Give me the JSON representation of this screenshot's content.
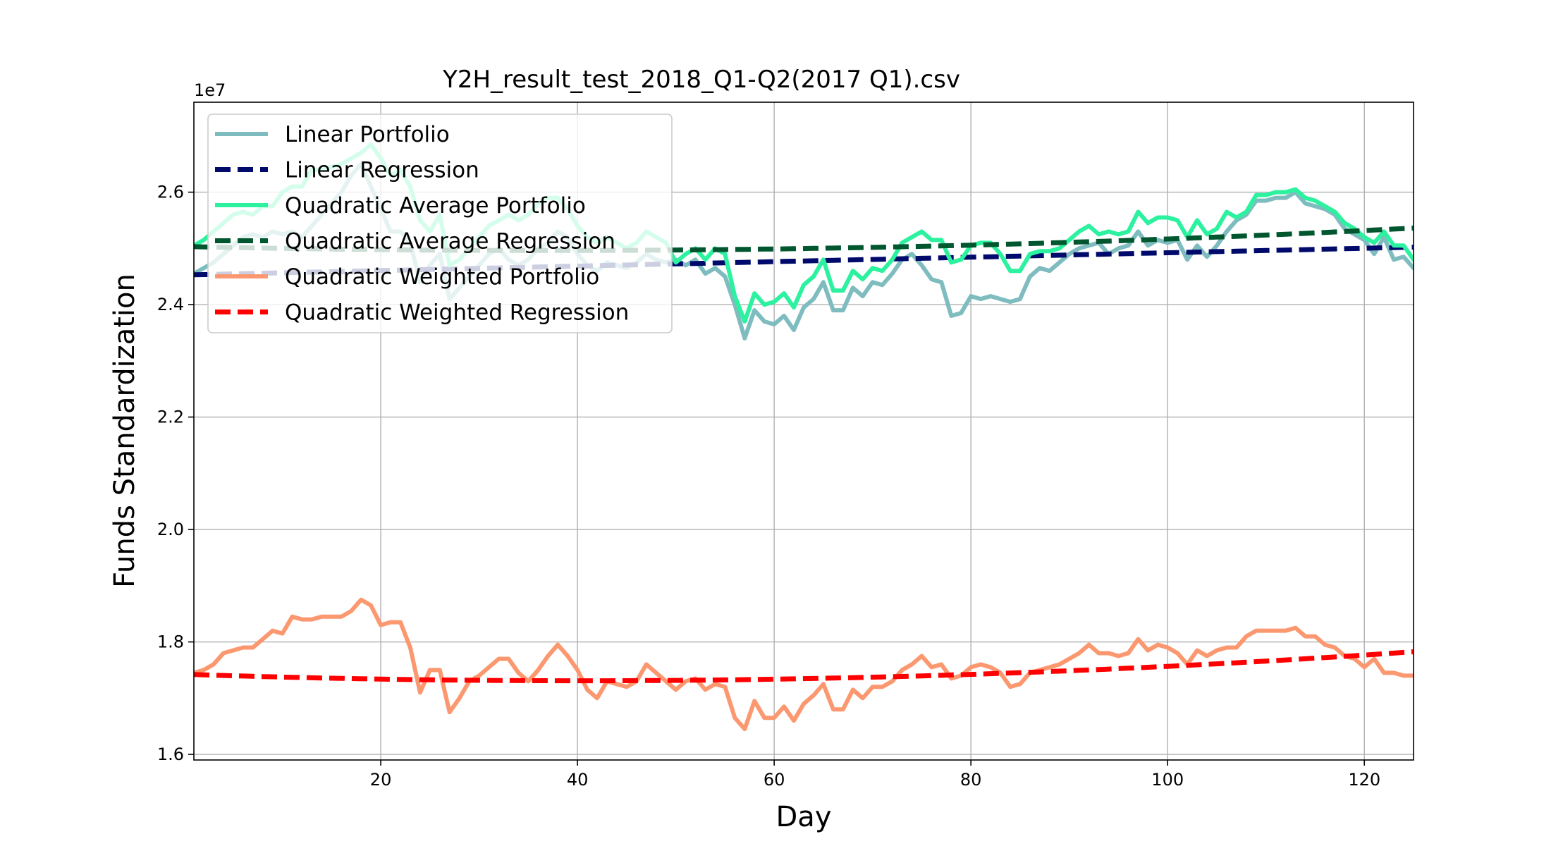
{
  "chart_data": {
    "type": "line",
    "title": "Y2H_result_test_2018_Q1-Q2(2017 Q1).csv",
    "xlabel": "Day",
    "ylabel": "Funds Standardization",
    "y_offset_label": "1e7",
    "xlim": [
      1,
      125
    ],
    "ylim": [
      1.59,
      2.76
    ],
    "xticks": [
      20,
      40,
      60,
      80,
      100,
      120
    ],
    "yticks": [
      1.6,
      1.8,
      2.0,
      2.2,
      2.4,
      2.6
    ],
    "ytick_labels": [
      "1.6",
      "1.8",
      "2.0",
      "2.2",
      "2.4",
      "2.6"
    ],
    "grid": true,
    "legend_position": "upper-left",
    "series": [
      {
        "name": "Linear Portfolio",
        "color": "#7fbcbf",
        "style": "solid",
        "values": [
          2.455,
          2.465,
          2.475,
          2.49,
          2.505,
          2.52,
          2.525,
          2.52,
          2.53,
          2.525,
          2.53,
          2.52,
          2.54,
          2.56,
          2.58,
          2.6,
          2.63,
          2.65,
          2.61,
          2.57,
          2.53,
          2.53,
          2.51,
          2.44,
          2.47,
          2.49,
          2.41,
          2.43,
          2.45,
          2.47,
          2.49,
          2.5,
          2.48,
          2.47,
          2.48,
          2.5,
          2.51,
          2.53,
          2.52,
          2.49,
          2.47,
          2.46,
          2.475,
          2.47,
          2.465,
          2.475,
          2.49,
          2.48,
          2.475,
          2.48,
          2.47,
          2.48,
          2.455,
          2.465,
          2.45,
          2.4,
          2.34,
          2.39,
          2.37,
          2.365,
          2.38,
          2.355,
          2.395,
          2.41,
          2.44,
          2.39,
          2.39,
          2.43,
          2.415,
          2.44,
          2.435,
          2.455,
          2.48,
          2.49,
          2.47,
          2.445,
          2.44,
          2.38,
          2.385,
          2.415,
          2.41,
          2.415,
          2.41,
          2.405,
          2.41,
          2.45,
          2.465,
          2.46,
          2.475,
          2.49,
          2.5,
          2.505,
          2.51,
          2.49,
          2.5,
          2.505,
          2.53,
          2.505,
          2.515,
          2.51,
          2.515,
          2.48,
          2.505,
          2.485,
          2.505,
          2.53,
          2.55,
          2.56,
          2.585,
          2.585,
          2.59,
          2.59,
          2.6,
          2.58,
          2.575,
          2.57,
          2.56,
          2.535,
          2.525,
          2.515,
          2.49,
          2.52,
          2.48,
          2.485,
          2.465,
          2.48,
          2.485
        ]
      },
      {
        "name": "Linear Regression",
        "color": "#000a6b",
        "style": "dashed",
        "values_from": [
          2.453,
          2.503
        ]
      },
      {
        "name": "Quadratic Average Portfolio",
        "color": "#2cf2a0",
        "style": "solid",
        "values": [
          2.505,
          2.515,
          2.53,
          2.545,
          2.56,
          2.565,
          2.56,
          2.575,
          2.575,
          2.6,
          2.61,
          2.61,
          2.64,
          2.64,
          2.645,
          2.65,
          2.66,
          2.67,
          2.685,
          2.66,
          2.63,
          2.64,
          2.61,
          2.55,
          2.53,
          2.56,
          2.47,
          2.48,
          2.5,
          2.52,
          2.54,
          2.55,
          2.56,
          2.55,
          2.56,
          2.58,
          2.59,
          2.59,
          2.57,
          2.54,
          2.52,
          2.51,
          2.52,
          2.51,
          2.5,
          2.51,
          2.53,
          2.52,
          2.51,
          2.475,
          2.49,
          2.5,
          2.48,
          2.5,
          2.49,
          2.415,
          2.37,
          2.42,
          2.4,
          2.405,
          2.42,
          2.395,
          2.435,
          2.45,
          2.48,
          2.425,
          2.425,
          2.46,
          2.445,
          2.465,
          2.46,
          2.48,
          2.51,
          2.52,
          2.53,
          2.515,
          2.515,
          2.475,
          2.48,
          2.505,
          2.51,
          2.51,
          2.49,
          2.46,
          2.46,
          2.49,
          2.495,
          2.495,
          2.5,
          2.515,
          2.53,
          2.54,
          2.525,
          2.53,
          2.525,
          2.53,
          2.565,
          2.545,
          2.555,
          2.555,
          2.55,
          2.52,
          2.55,
          2.525,
          2.535,
          2.565,
          2.555,
          2.565,
          2.595,
          2.595,
          2.6,
          2.6,
          2.605,
          2.59,
          2.585,
          2.575,
          2.565,
          2.545,
          2.535,
          2.52,
          2.51,
          2.53,
          2.505,
          2.505,
          2.48,
          2.49,
          2.49
        ]
      },
      {
        "name": "Quadratic Average Regression",
        "color": "#00562e",
        "style": "dashed",
        "values_from": [
          2.503,
          2.5,
          2.538
        ]
      },
      {
        "name": "Quadratic Weighted Portfolio",
        "color": "#fb9870",
        "style": "solid",
        "values": [
          1.745,
          1.75,
          1.76,
          1.78,
          1.785,
          1.79,
          1.79,
          1.805,
          1.82,
          1.815,
          1.845,
          1.84,
          1.84,
          1.845,
          1.845,
          1.845,
          1.855,
          1.875,
          1.865,
          1.83,
          1.835,
          1.835,
          1.79,
          1.71,
          1.75,
          1.75,
          1.675,
          1.7,
          1.73,
          1.74,
          1.755,
          1.77,
          1.77,
          1.745,
          1.73,
          1.75,
          1.775,
          1.795,
          1.775,
          1.75,
          1.715,
          1.7,
          1.73,
          1.725,
          1.72,
          1.73,
          1.76,
          1.745,
          1.73,
          1.715,
          1.73,
          1.735,
          1.715,
          1.725,
          1.72,
          1.665,
          1.645,
          1.695,
          1.665,
          1.665,
          1.685,
          1.66,
          1.69,
          1.705,
          1.725,
          1.68,
          1.68,
          1.715,
          1.7,
          1.72,
          1.72,
          1.73,
          1.75,
          1.76,
          1.775,
          1.755,
          1.76,
          1.735,
          1.74,
          1.755,
          1.76,
          1.755,
          1.745,
          1.72,
          1.725,
          1.745,
          1.75,
          1.755,
          1.76,
          1.77,
          1.78,
          1.795,
          1.78,
          1.78,
          1.775,
          1.78,
          1.805,
          1.785,
          1.795,
          1.79,
          1.78,
          1.76,
          1.785,
          1.775,
          1.785,
          1.79,
          1.79,
          1.81,
          1.82,
          1.82,
          1.82,
          1.82,
          1.825,
          1.81,
          1.81,
          1.795,
          1.79,
          1.775,
          1.77,
          1.755,
          1.77,
          1.745,
          1.745,
          1.74,
          1.74,
          1.745
        ]
      },
      {
        "name": "Quadratic Weighted Regression",
        "color": "#ff0000",
        "style": "dashed",
        "values_from": [
          1.742,
          1.735,
          1.785
        ]
      }
    ]
  }
}
